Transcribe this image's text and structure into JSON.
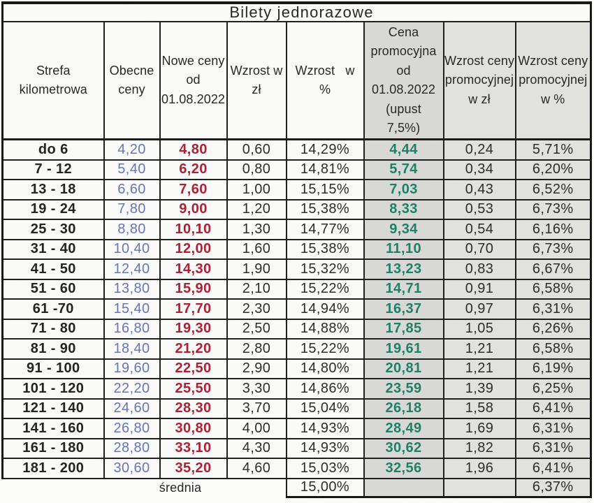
{
  "title": "Bilety jednorazowe",
  "columns": [
    {
      "label": "Strefa\nkilometrowa",
      "shade": "none"
    },
    {
      "label": "Obecne\nceny",
      "shade": "none"
    },
    {
      "label": "Nowe ceny\nod\n01.08.2022",
      "shade": "none"
    },
    {
      "label": "Wzrost w\nzł",
      "shade": "none"
    },
    {
      "label": "Wzrost   w\n%",
      "shade": "none"
    },
    {
      "label": "Cena\npromocyjna\nod\n01.08.2022\n(upust\n7,5%)",
      "shade": "a"
    },
    {
      "label": "Wzrost ceny\npromocyjnej\nw zł",
      "shade": "b"
    },
    {
      "label": "Wzrost ceny\npromocyjnej\nw %",
      "shade": "b"
    }
  ],
  "rows": [
    [
      "do 6",
      "4,20",
      "4,80",
      "0,60",
      "14,29%",
      "4,44",
      "0,24",
      "5,71%"
    ],
    [
      "7 - 12",
      "5,40",
      "6,20",
      "0,80",
      "14,81%",
      "5,74",
      "0,34",
      "6,20%"
    ],
    [
      "13 - 18",
      "6,60",
      "7,60",
      "1,00",
      "15,15%",
      "7,03",
      "0,43",
      "6,52%"
    ],
    [
      "19 - 24",
      "7,80",
      "9,00",
      "1,20",
      "15,38%",
      "8,33",
      "0,53",
      "6,73%"
    ],
    [
      "25 - 30",
      "8,80",
      "10,10",
      "1,30",
      "14,77%",
      "9,34",
      "0,54",
      "6,16%"
    ],
    [
      "31 - 40",
      "10,40",
      "12,00",
      "1,60",
      "15,38%",
      "11,10",
      "0,70",
      "6,73%"
    ],
    [
      "41 - 50",
      "12,40",
      "14,30",
      "1,90",
      "15,32%",
      "13,23",
      "0,83",
      "6,67%"
    ],
    [
      "51 - 60",
      "13,80",
      "15,90",
      "2,10",
      "15,22%",
      "14,71",
      "0,91",
      "6,58%"
    ],
    [
      "61 -70",
      "15,40",
      "17,70",
      "2,30",
      "14,94%",
      "16,37",
      "0,97",
      "6,31%"
    ],
    [
      "71 - 80",
      "16,80",
      "19,30",
      "2,50",
      "14,88%",
      "17,85",
      "1,05",
      "6,26%"
    ],
    [
      "81 - 90",
      "18,40",
      "21,20",
      "2,80",
      "15,22%",
      "19,61",
      "1,21",
      "6,58%"
    ],
    [
      "91 - 100",
      "19,60",
      "22,50",
      "2,90",
      "14,80%",
      "20,81",
      "1,21",
      "6,19%"
    ],
    [
      "101 - 120",
      "22,20",
      "25,50",
      "3,30",
      "14,86%",
      "23,59",
      "1,39",
      "6,25%"
    ],
    [
      "121 - 140",
      "24,60",
      "28,30",
      "3,70",
      "15,04%",
      "26,18",
      "1,58",
      "6,41%"
    ],
    [
      "141 - 160",
      "26,80",
      "30,80",
      "4,00",
      "14,93%",
      "28,49",
      "1,69",
      "6,31%"
    ],
    [
      "161 - 180",
      "28,80",
      "33,10",
      "4,30",
      "14,93%",
      "30,62",
      "1,82",
      "6,31%"
    ],
    [
      "181 - 200",
      "30,60",
      "35,20",
      "4,60",
      "15,03%",
      "32,56",
      "1,96",
      "6,41%"
    ]
  ],
  "summary": {
    "label": "średnia",
    "avg_increase_pct": "15,00%",
    "avg_promo_increase_pct": "6,37%"
  },
  "colors": {
    "current_price": "#6673ba",
    "new_price": "#ae1e33",
    "promo_price": "#1e7f66",
    "text": "#262626",
    "grid": "#1e1e1e",
    "shade_promo": "#d9dad7",
    "shade_promo_increase": "#e2e2df"
  },
  "chart_data": {
    "type": "table",
    "title": "Bilety jednorazowe",
    "columns": [
      "Strefa kilometrowa",
      "Obecne ceny",
      "Nowe ceny od 01.08.2022",
      "Wzrost w zł",
      "Wzrost w %",
      "Cena promocyjna od 01.08.2022 (upust 7,5%)",
      "Wzrost ceny promocyjnej w zł",
      "Wzrost ceny promocyjnej w %"
    ],
    "rows": [
      [
        "do 6",
        4.2,
        4.8,
        0.6,
        "14,29%",
        4.44,
        0.24,
        "5,71%"
      ],
      [
        "7 - 12",
        5.4,
        6.2,
        0.8,
        "14,81%",
        5.74,
        0.34,
        "6,20%"
      ],
      [
        "13 - 18",
        6.6,
        7.6,
        1.0,
        "15,15%",
        7.03,
        0.43,
        "6,52%"
      ],
      [
        "19 - 24",
        7.8,
        9.0,
        1.2,
        "15,38%",
        8.33,
        0.53,
        "6,73%"
      ],
      [
        "25 - 30",
        8.8,
        10.1,
        1.3,
        "14,77%",
        9.34,
        0.54,
        "6,16%"
      ],
      [
        "31 - 40",
        10.4,
        12.0,
        1.6,
        "15,38%",
        11.1,
        0.7,
        "6,73%"
      ],
      [
        "41 - 50",
        12.4,
        14.3,
        1.9,
        "15,32%",
        13.23,
        0.83,
        "6,67%"
      ],
      [
        "51 - 60",
        13.8,
        15.9,
        2.1,
        "15,22%",
        14.71,
        0.91,
        "6,58%"
      ],
      [
        "61 -70",
        15.4,
        17.7,
        2.3,
        "14,94%",
        16.37,
        0.97,
        "6,31%"
      ],
      [
        "71 - 80",
        16.8,
        19.3,
        2.5,
        "14,88%",
        17.85,
        1.05,
        "6,26%"
      ],
      [
        "81 - 90",
        18.4,
        21.2,
        2.8,
        "15,22%",
        19.61,
        1.21,
        "6,58%"
      ],
      [
        "91 - 100",
        19.6,
        22.5,
        2.9,
        "14,80%",
        20.81,
        1.21,
        "6,19%"
      ],
      [
        "101 - 120",
        22.2,
        25.5,
        3.3,
        "14,86%",
        23.59,
        1.39,
        "6,25%"
      ],
      [
        "121 - 140",
        24.6,
        28.3,
        3.7,
        "15,04%",
        26.18,
        1.58,
        "6,41%"
      ],
      [
        "141 - 160",
        26.8,
        30.8,
        4.0,
        "14,93%",
        28.49,
        1.69,
        "6,31%"
      ],
      [
        "161 - 180",
        28.8,
        33.1,
        4.3,
        "14,93%",
        30.62,
        1.82,
        "6,31%"
      ],
      [
        "181 - 200",
        30.6,
        35.2,
        4.6,
        "15,03%",
        32.56,
        1.96,
        "6,41%"
      ],
      [
        "średnia",
        null,
        null,
        null,
        "15,00%",
        null,
        null,
        "6,37%"
      ]
    ]
  }
}
